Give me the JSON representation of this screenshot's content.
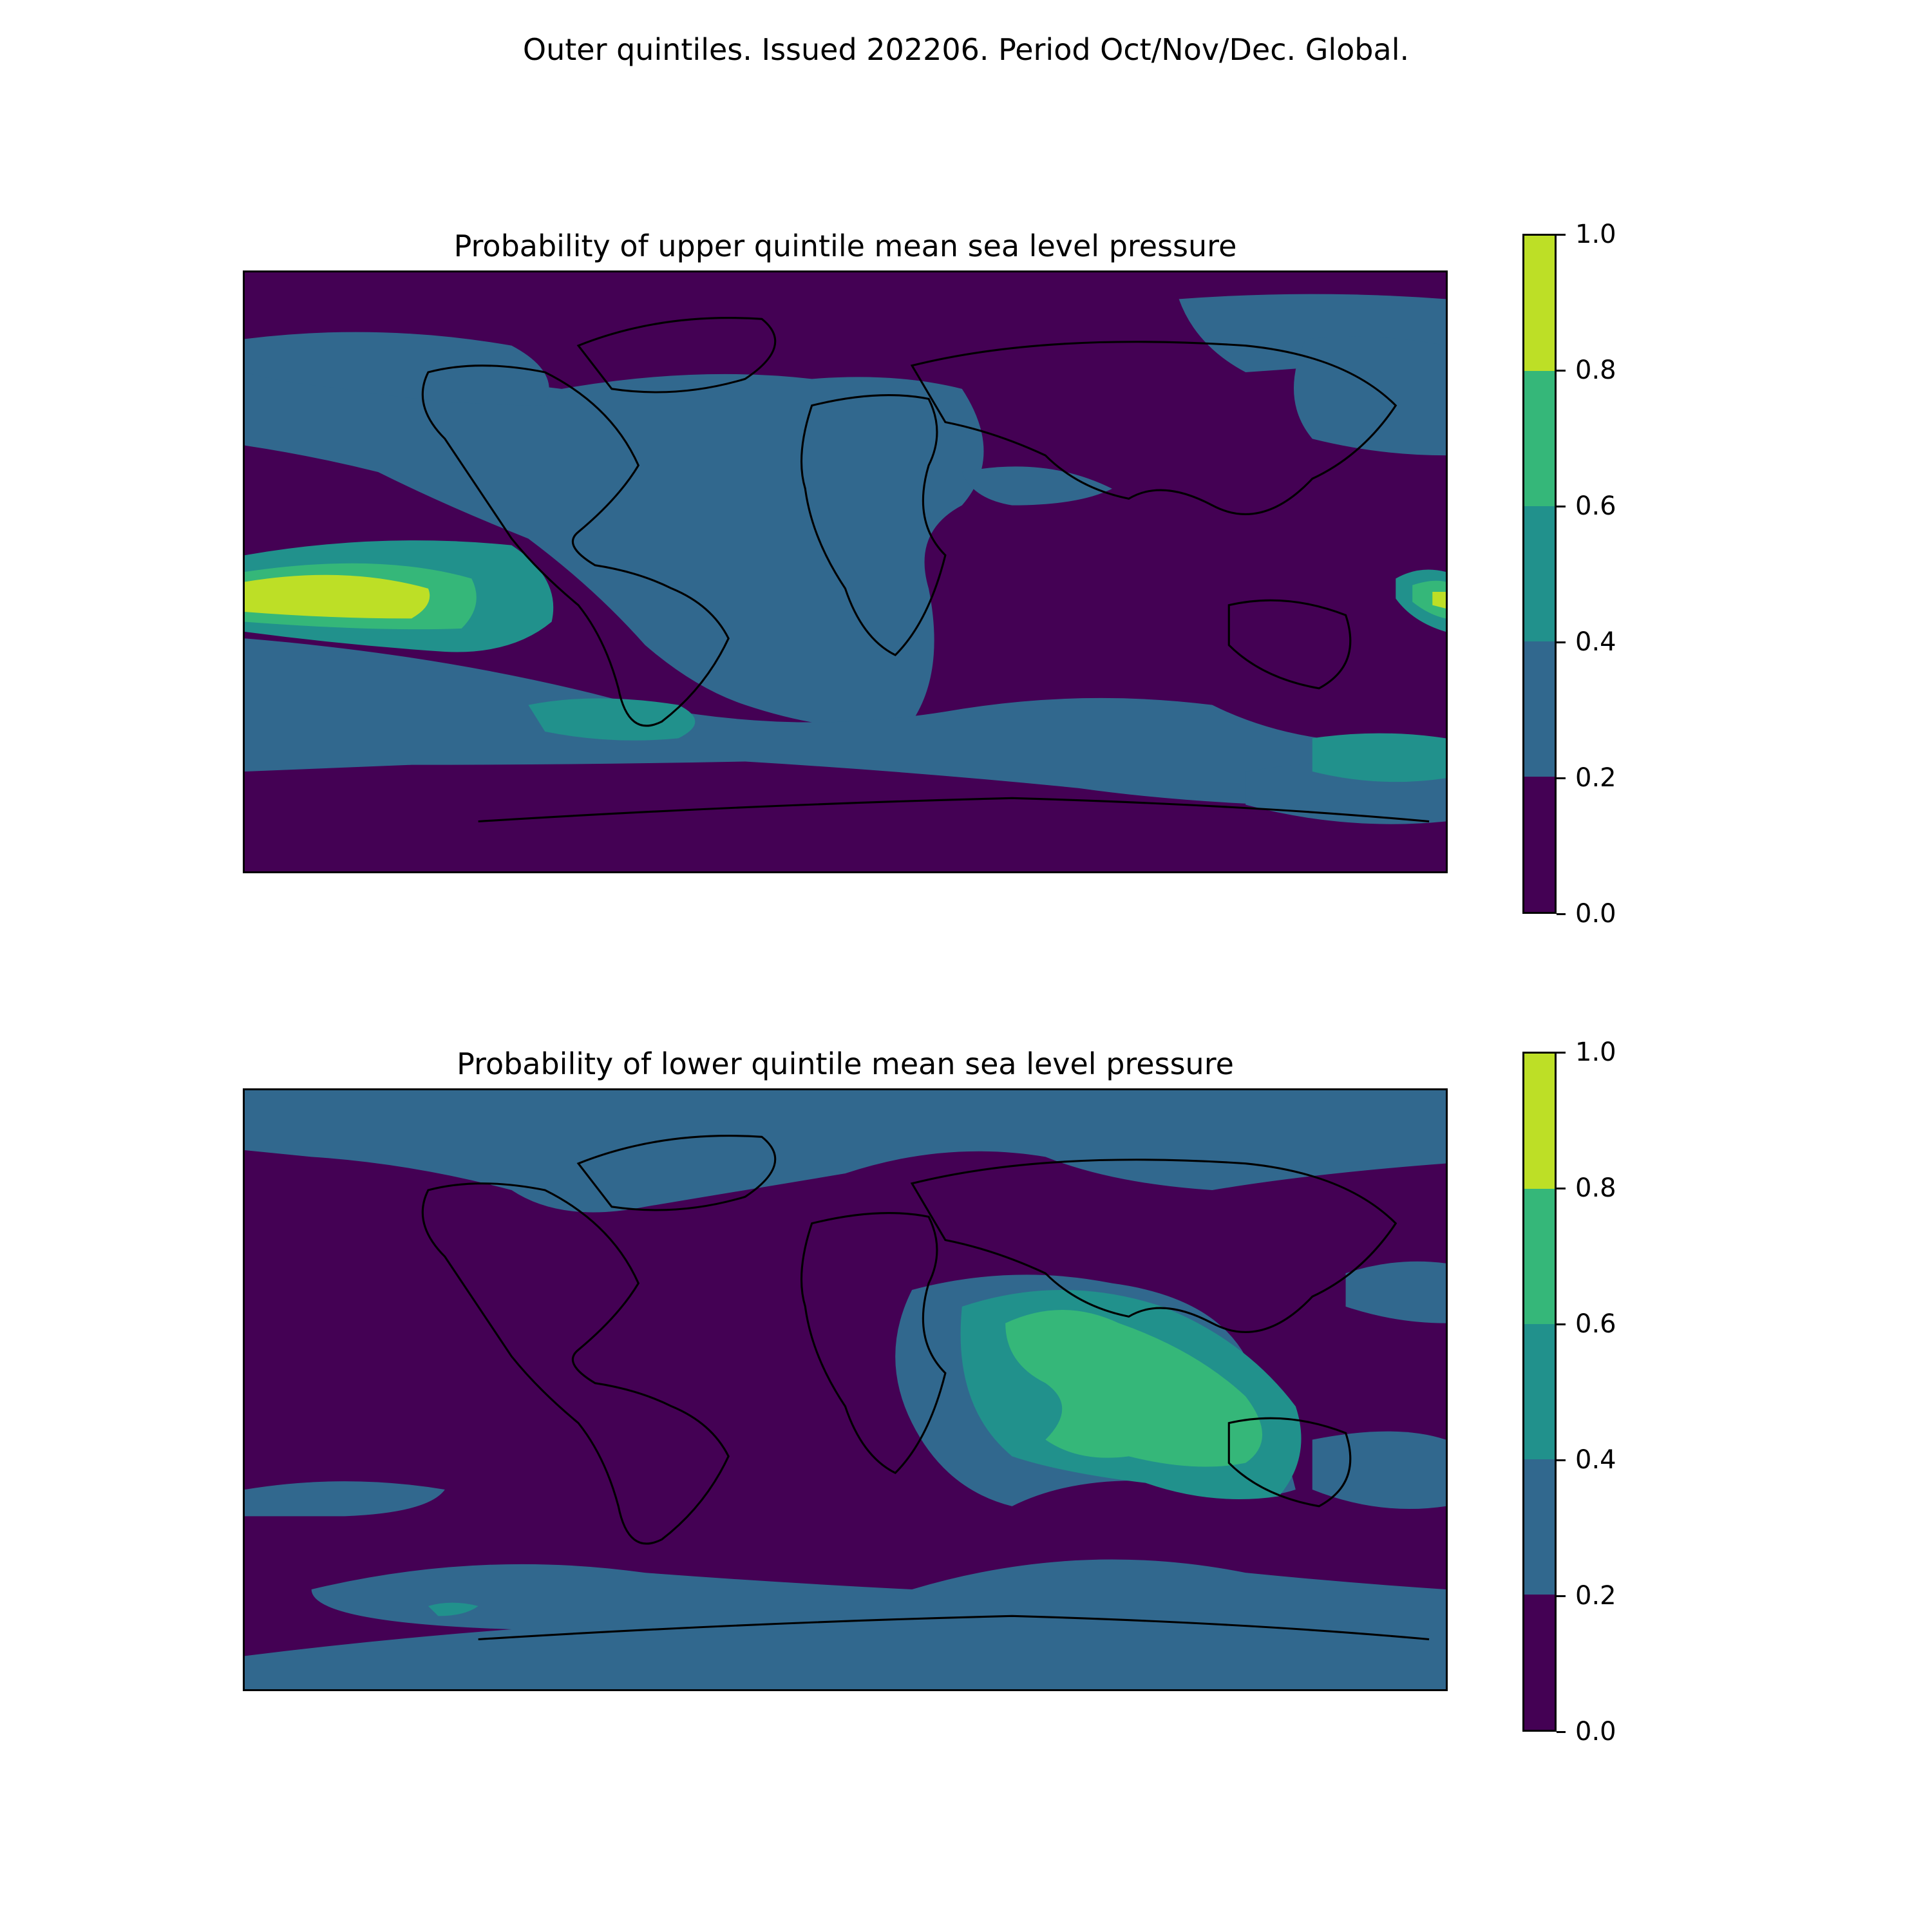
{
  "suptitle": "Outer quintiles. Issued 202206. Period Oct/Nov/Dec. Global.",
  "colorbar": {
    "ticks": [
      "0.0",
      "0.2",
      "0.4",
      "0.6",
      "0.8",
      "1.0"
    ],
    "bins": [
      {
        "range": [
          0.0,
          0.2
        ],
        "color": "#440154"
      },
      {
        "range": [
          0.2,
          0.4
        ],
        "color": "#31688e"
      },
      {
        "range": [
          0.4,
          0.6
        ],
        "color": "#21918c"
      },
      {
        "range": [
          0.6,
          0.8
        ],
        "color": "#35b779"
      },
      {
        "range": [
          0.8,
          1.0
        ],
        "color": "#bddf26"
      }
    ]
  },
  "panels": [
    {
      "title": "Probability of upper quintile mean sea level pressure",
      "background_bin": "0.0–0.2",
      "dominant_regions": [
        {
          "region": "Atlantic Ocean",
          "bin": "0.2–0.4"
        },
        {
          "region": "central Pacific (near equator)",
          "bin": "0.8–1.0"
        },
        {
          "region": "South Pacific / Tasman Sea",
          "bin": "0.4–0.6"
        },
        {
          "region": "Indian Ocean",
          "bin": "0.0–0.2"
        }
      ]
    },
    {
      "title": "Probability of lower quintile mean sea level pressure",
      "background_bin": "0.0–0.2",
      "dominant_regions": [
        {
          "region": "Indian Ocean / Maritime Continent",
          "bin": "0.6–0.8"
        },
        {
          "region": "Northern high latitudes",
          "bin": "0.2–0.4"
        },
        {
          "region": "Southern Ocean",
          "bin": "0.2–0.4"
        },
        {
          "region": "Pacific Ocean",
          "bin": "0.0–0.2"
        }
      ]
    }
  ]
}
